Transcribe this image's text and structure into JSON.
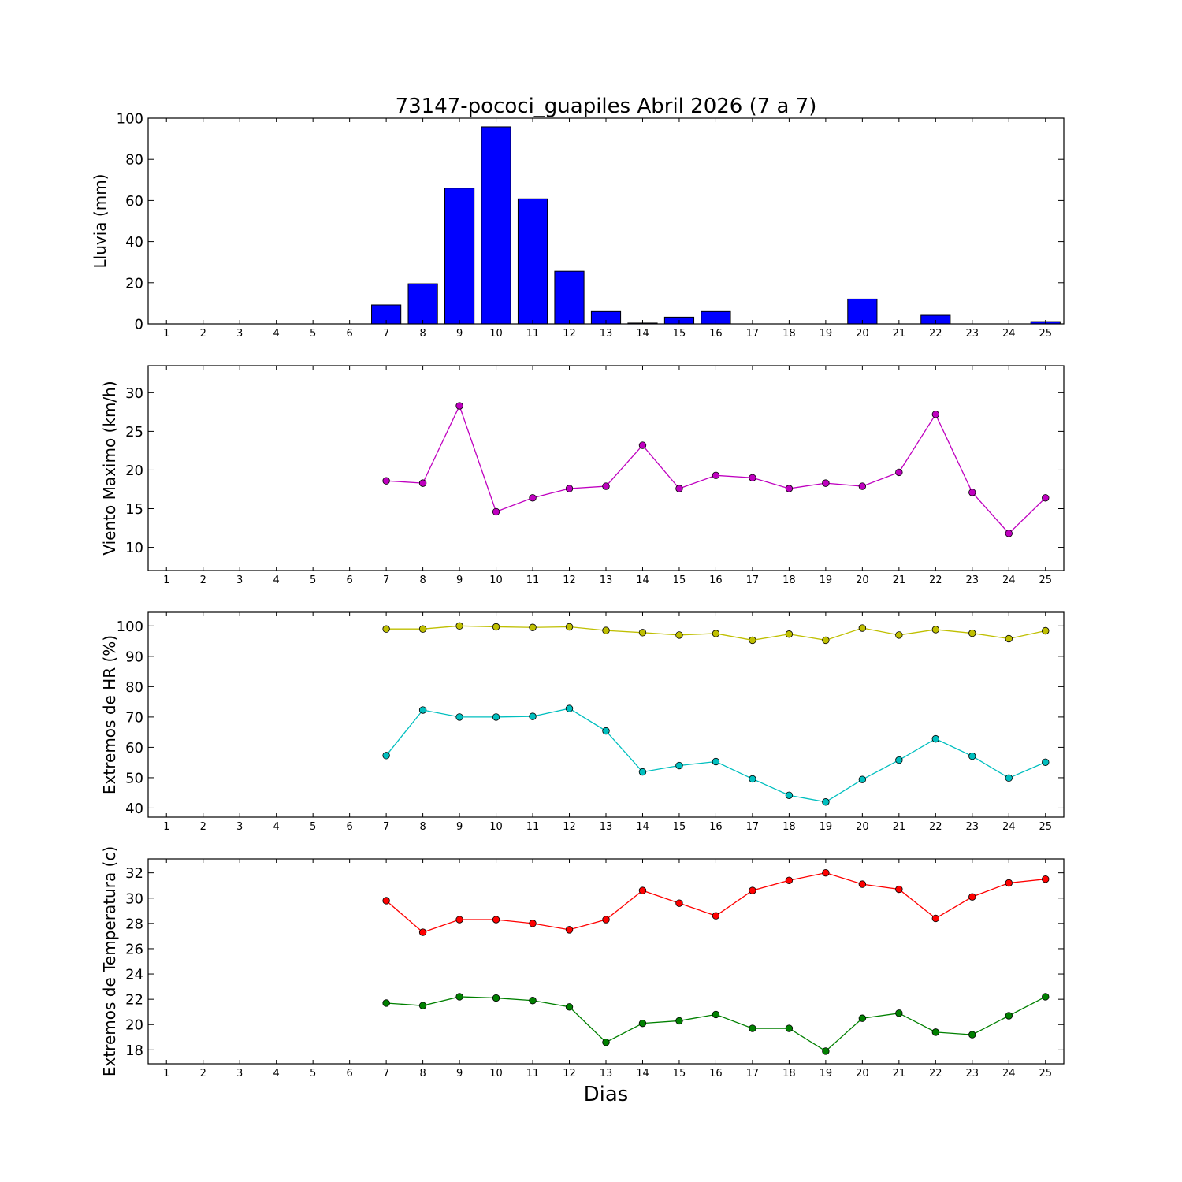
{
  "figure": {
    "title": "73147-pococi_guapiles Abril 2026  (7 a 7)",
    "xlabel": "Dias"
  },
  "chart_data": [
    {
      "type": "bar",
      "ylabel": "Lluvia (mm)",
      "categories": [
        1,
        2,
        3,
        4,
        5,
        6,
        7,
        8,
        9,
        10,
        11,
        12,
        13,
        14,
        15,
        16,
        17,
        18,
        19,
        20,
        21,
        22,
        23,
        24,
        25
      ],
      "values": [
        0,
        0,
        0,
        0,
        0,
        0,
        9.2,
        19.5,
        66,
        95.8,
        60.8,
        25.6,
        6,
        0.4,
        3.3,
        6,
        0,
        0,
        0,
        12.1,
        0,
        4.2,
        0,
        0,
        1.1
      ],
      "color": "#0000ff",
      "xlim": [
        0.5,
        25.5
      ],
      "ylim": [
        0,
        100
      ],
      "yticks": [
        0,
        20,
        40,
        60,
        80,
        100
      ],
      "grid": false
    },
    {
      "type": "line",
      "ylabel": "Viento Maximo (km/h)",
      "x": [
        7,
        8,
        9,
        10,
        11,
        12,
        13,
        14,
        15,
        16,
        17,
        18,
        19,
        20,
        21,
        22,
        23,
        24,
        25
      ],
      "series": [
        {
          "color": "#bf00bf",
          "values": [
            18.6,
            18.3,
            28.3,
            14.6,
            16.4,
            17.6,
            17.9,
            23.2,
            17.6,
            19.3,
            19,
            17.6,
            18.3,
            17.9,
            19.7,
            27.2,
            17.1,
            11.8,
            16.4
          ]
        }
      ],
      "xlim": [
        0.5,
        25.5
      ],
      "ylim": [
        7,
        33.5
      ],
      "yticks": [
        10,
        15,
        20,
        25,
        30
      ],
      "grid": false
    },
    {
      "type": "line",
      "ylabel": "Extremos de HR (%)",
      "x": [
        7,
        8,
        9,
        10,
        11,
        12,
        13,
        14,
        15,
        16,
        17,
        18,
        19,
        20,
        21,
        22,
        23,
        24,
        25
      ],
      "series": [
        {
          "color": "#bfbf00",
          "values": [
            99,
            99,
            100,
            99.7,
            99.5,
            99.7,
            98.5,
            97.8,
            97,
            97.5,
            95.3,
            97.3,
            95.3,
            99.3,
            97,
            98.8,
            97.6,
            95.8,
            98.4
          ]
        },
        {
          "color": "#00bfbf",
          "values": [
            57.3,
            72.3,
            70,
            70,
            70.2,
            72.8,
            65.4,
            51.9,
            54,
            55.3,
            49.6,
            44.2,
            42,
            49.4,
            55.8,
            62.8,
            57.1,
            49.9,
            55.1
          ]
        }
      ],
      "xlim": [
        0.5,
        25.5
      ],
      "ylim": [
        37,
        104.5
      ],
      "yticks": [
        40,
        50,
        60,
        70,
        80,
        90,
        100
      ],
      "grid": false
    },
    {
      "type": "line",
      "ylabel": "Extremos de Temperatura (c)",
      "x": [
        7,
        8,
        9,
        10,
        11,
        12,
        13,
        14,
        15,
        16,
        17,
        18,
        19,
        20,
        21,
        22,
        23,
        24,
        25
      ],
      "series": [
        {
          "color": "#ff0000",
          "values": [
            29.8,
            27.3,
            28.3,
            28.3,
            28,
            27.5,
            28.3,
            30.6,
            29.6,
            28.6,
            30.6,
            31.4,
            32,
            31.1,
            30.7,
            28.4,
            30.1,
            31.2,
            31.5
          ]
        },
        {
          "color": "#008000",
          "values": [
            21.7,
            21.5,
            22.2,
            22.1,
            21.9,
            21.4,
            18.6,
            20.1,
            20.3,
            20.8,
            19.7,
            19.7,
            17.9,
            20.5,
            20.9,
            19.4,
            19.2,
            20.7,
            22.2
          ]
        }
      ],
      "xlim": [
        0.5,
        25.5
      ],
      "ylim": [
        16.9,
        33.1
      ],
      "yticks": [
        18,
        20,
        22,
        24,
        26,
        28,
        30,
        32
      ],
      "grid": false
    }
  ]
}
